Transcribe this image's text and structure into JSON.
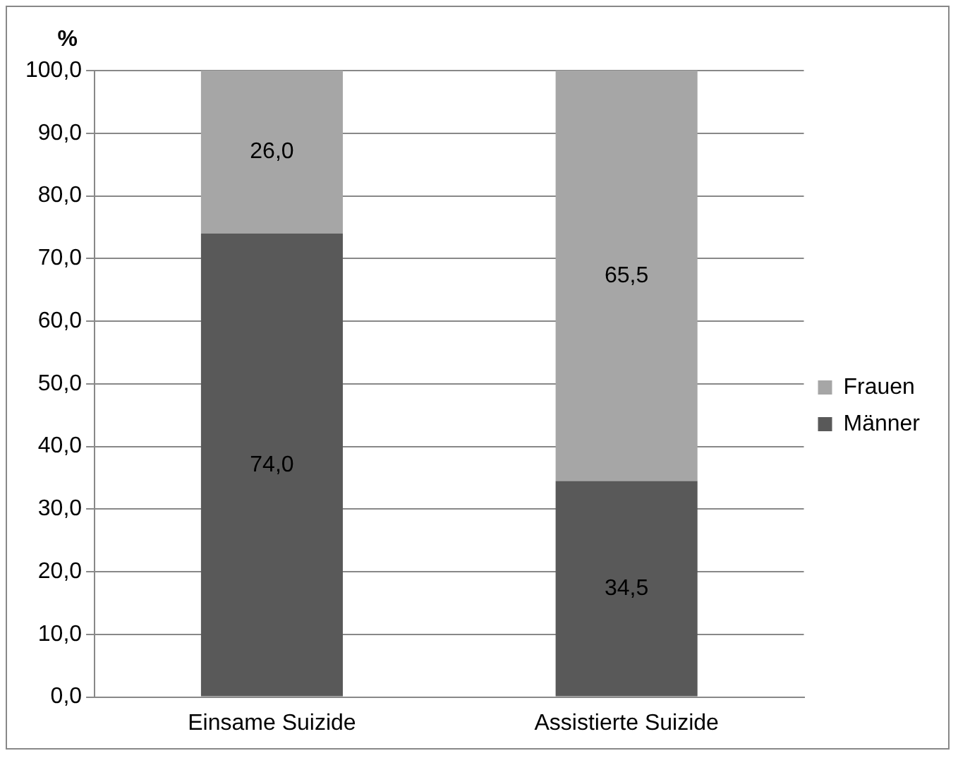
{
  "chart_data": {
    "type": "bar",
    "stacked": true,
    "ylabel": "%",
    "categories": [
      "Einsame Suizide",
      "Assistierte Suizide"
    ],
    "series": [
      {
        "name": "Männer",
        "color": "#595959",
        "values": [
          74.0,
          34.5
        ],
        "value_labels": [
          "74,0",
          "34,5"
        ]
      },
      {
        "name": "Frauen",
        "color": "#a6a6a6",
        "values": [
          26.0,
          65.5
        ],
        "value_labels": [
          "26,0",
          "65,5"
        ]
      }
    ],
    "ylim": [
      0,
      100
    ],
    "yticks": [
      {
        "value": 0,
        "label": "0,0"
      },
      {
        "value": 10,
        "label": "10,0"
      },
      {
        "value": 20,
        "label": "20,0"
      },
      {
        "value": 30,
        "label": "30,0"
      },
      {
        "value": 40,
        "label": "40,0"
      },
      {
        "value": 50,
        "label": "50,0"
      },
      {
        "value": 60,
        "label": "60,0"
      },
      {
        "value": 70,
        "label": "70,0"
      },
      {
        "value": 80,
        "label": "80,0"
      },
      {
        "value": 90,
        "label": "90,0"
      },
      {
        "value": 100,
        "label": "100,0"
      }
    ],
    "grid": "y",
    "legend": "right"
  }
}
